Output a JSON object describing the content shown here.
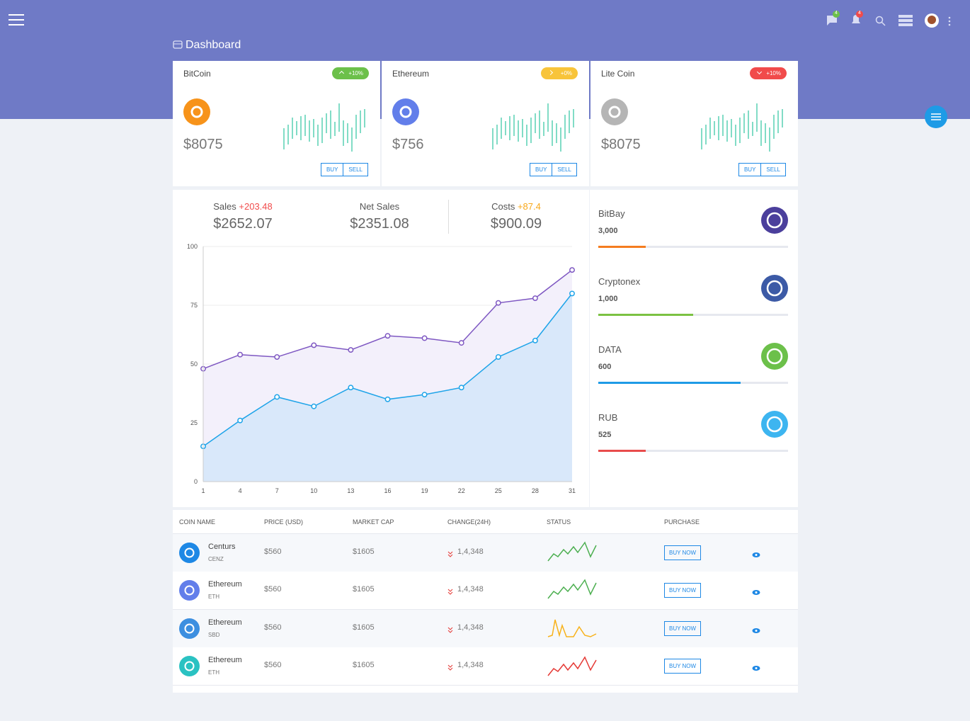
{
  "header": {
    "title": "Dashboard",
    "messages_badge": "4",
    "notifications_badge": "4"
  },
  "coins": [
    {
      "name": "BitCoin",
      "change": "+10%",
      "trend": "up",
      "badge_color": "#6cc04a",
      "icon_color": "#f7931a",
      "price": "$8075",
      "buy": "BUY",
      "sell": "SELL"
    },
    {
      "name": "Ethereum",
      "change": "+0%",
      "trend": "flat",
      "badge_color": "#f8c43a",
      "icon_color": "#627eea",
      "price": "$756",
      "buy": "BUY",
      "sell": "SELL"
    },
    {
      "name": "Lite Coin",
      "change": "+10%",
      "trend": "down",
      "badge_color": "#f14b4b",
      "icon_color": "#b5b5b5",
      "price": "$8075",
      "buy": "BUY",
      "sell": "SELL"
    }
  ],
  "stats": [
    {
      "label": "Sales",
      "delta": "+203.48",
      "delta_color": "#f14b4b",
      "value": "$2652.07"
    },
    {
      "label": "Net Sales",
      "value": "$2351.08"
    },
    {
      "label": "Costs",
      "delta": "+87.4",
      "delta_color": "#f8a81a",
      "value": "$900.09"
    }
  ],
  "chart": {
    "type": "area",
    "x": [
      1,
      4,
      7,
      10,
      13,
      16,
      19,
      22,
      25,
      28,
      31
    ],
    "xlim": [
      1,
      31
    ],
    "xticks": [
      1,
      4,
      7,
      10,
      13,
      16,
      19,
      22,
      25,
      28,
      31
    ],
    "ylim": [
      0,
      100
    ],
    "yticks": [
      0,
      25,
      50,
      75,
      100
    ],
    "grid": true,
    "series": [
      {
        "color": "#7e57c2",
        "fill": "#f3f0fb",
        "values": [
          48,
          54,
          53,
          58,
          56,
          62,
          61,
          59,
          76,
          78,
          90
        ]
      },
      {
        "color": "#1ea4e9",
        "fill": "#d9e8fa",
        "values": [
          15,
          26,
          36,
          32,
          40,
          35,
          37,
          40,
          53,
          60,
          80
        ]
      }
    ]
  },
  "exchanges": [
    {
      "name": "BitBay",
      "amount": "3,000",
      "progress": 25,
      "color": "#f57c1f",
      "icon_color": "#4b3f9c"
    },
    {
      "name": "Cryptonex",
      "amount": "1,000",
      "progress": 50,
      "color": "#7cc243",
      "icon_color": "#3c5aa6"
    },
    {
      "name": "DATA",
      "amount": "600",
      "progress": 75,
      "color": "#1e9be6",
      "icon_color": "#6cc04a"
    },
    {
      "name": "RUB",
      "amount": "525",
      "progress": 25,
      "color": "#e84c4c",
      "icon_color": "#3db5f0"
    }
  ],
  "table": {
    "columns": [
      "COIN NAME",
      "PRICE (USD)",
      "MARKET CAP",
      "CHANGE(24H)",
      "STATUS",
      "PURCHASE"
    ],
    "rows": [
      {
        "name": "Centurs",
        "symbol": "CENZ",
        "price": "$560",
        "market_cap": "$1605",
        "change": "1,4,348",
        "action": "BUY NOW",
        "icon_color": "#1e88e5",
        "status_color": "#4caf50"
      },
      {
        "name": "Ethereum",
        "symbol": "ETH",
        "price": "$560",
        "market_cap": "$1605",
        "change": "1,4,348",
        "action": "BUY NOW",
        "icon_color": "#627eea",
        "status_color": "#4caf50"
      },
      {
        "name": "Ethereum",
        "symbol": "SBD",
        "price": "$560",
        "market_cap": "$1605",
        "change": "1,4,348",
        "action": "BUY NOW",
        "icon_color": "#3d8fe0",
        "status_color": "#f8b21a"
      },
      {
        "name": "Ethereum",
        "symbol": "ETH",
        "price": "$560",
        "market_cap": "$1605",
        "change": "1,4,348",
        "action": "BUY NOW",
        "icon_color": "#2ac2c2",
        "status_color": "#e53935"
      }
    ]
  }
}
